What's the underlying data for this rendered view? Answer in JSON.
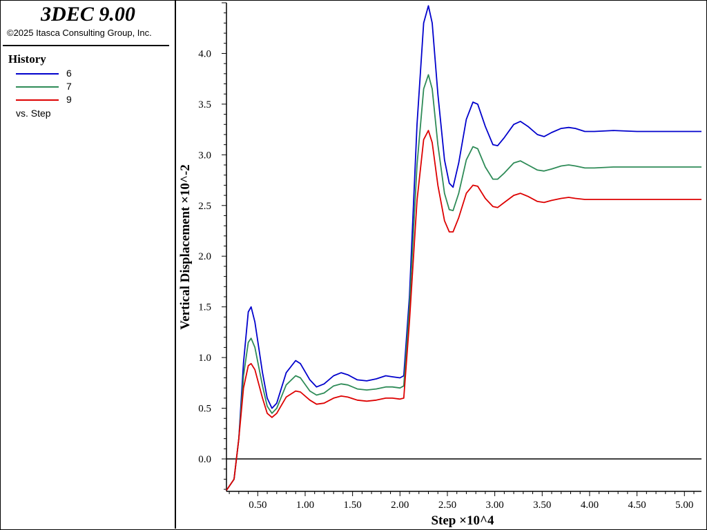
{
  "app": {
    "title": "3DEC 9.00",
    "copyright": "©2025 Itasca Consulting Group, Inc."
  },
  "legend": {
    "heading": "History",
    "entries": [
      {
        "label": "6",
        "color": "#0000cc"
      },
      {
        "label": "7",
        "color": "#2e8b57"
      },
      {
        "label": "9",
        "color": "#dd0000"
      }
    ],
    "footer": "vs. Step"
  },
  "chart_data": {
    "type": "line",
    "xlabel": "Step ×10^4",
    "ylabel": "Vertical Displacement ×10^-2",
    "xlim": [
      0.17,
      5.18
    ],
    "ylim": [
      -0.32,
      4.5
    ],
    "x_ticks": [
      "0.50",
      "1.00",
      "1.50",
      "2.00",
      "2.50",
      "3.00",
      "3.50",
      "4.00",
      "4.50",
      "5.00"
    ],
    "y_ticks": [
      "0.0",
      "0.5",
      "1.0",
      "1.5",
      "2.0",
      "2.5",
      "3.0",
      "3.5",
      "4.0"
    ],
    "zero_line": true,
    "grid": false,
    "series": [
      {
        "name": "6",
        "color": "#0000cc",
        "points": [
          [
            0.17,
            -0.31
          ],
          [
            0.25,
            -0.2
          ],
          [
            0.3,
            0.2
          ],
          [
            0.35,
            0.95
          ],
          [
            0.4,
            1.45
          ],
          [
            0.43,
            1.5
          ],
          [
            0.47,
            1.35
          ],
          [
            0.55,
            0.85
          ],
          [
            0.6,
            0.6
          ],
          [
            0.65,
            0.5
          ],
          [
            0.7,
            0.55
          ],
          [
            0.8,
            0.85
          ],
          [
            0.9,
            0.97
          ],
          [
            0.95,
            0.94
          ],
          [
            1.05,
            0.78
          ],
          [
            1.12,
            0.71
          ],
          [
            1.2,
            0.74
          ],
          [
            1.3,
            0.82
          ],
          [
            1.38,
            0.85
          ],
          [
            1.45,
            0.83
          ],
          [
            1.55,
            0.78
          ],
          [
            1.65,
            0.77
          ],
          [
            1.75,
            0.79
          ],
          [
            1.85,
            0.82
          ],
          [
            1.92,
            0.81
          ],
          [
            2.0,
            0.8
          ],
          [
            2.04,
            0.82
          ],
          [
            2.1,
            1.6
          ],
          [
            2.18,
            3.3
          ],
          [
            2.25,
            4.3
          ],
          [
            2.3,
            4.47
          ],
          [
            2.34,
            4.3
          ],
          [
            2.4,
            3.6
          ],
          [
            2.47,
            2.95
          ],
          [
            2.52,
            2.72
          ],
          [
            2.56,
            2.68
          ],
          [
            2.62,
            2.92
          ],
          [
            2.7,
            3.35
          ],
          [
            2.77,
            3.52
          ],
          [
            2.82,
            3.5
          ],
          [
            2.9,
            3.28
          ],
          [
            2.98,
            3.1
          ],
          [
            3.03,
            3.09
          ],
          [
            3.1,
            3.17
          ],
          [
            3.2,
            3.3
          ],
          [
            3.27,
            3.33
          ],
          [
            3.35,
            3.28
          ],
          [
            3.45,
            3.2
          ],
          [
            3.52,
            3.18
          ],
          [
            3.6,
            3.22
          ],
          [
            3.7,
            3.26
          ],
          [
            3.78,
            3.27
          ],
          [
            3.85,
            3.26
          ],
          [
            3.95,
            3.23
          ],
          [
            4.05,
            3.23
          ],
          [
            4.25,
            3.24
          ],
          [
            4.5,
            3.23
          ],
          [
            5.18,
            3.23
          ]
        ]
      },
      {
        "name": "7",
        "color": "#2e8b57",
        "points": [
          [
            0.17,
            -0.31
          ],
          [
            0.25,
            -0.2
          ],
          [
            0.3,
            0.2
          ],
          [
            0.35,
            0.82
          ],
          [
            0.4,
            1.15
          ],
          [
            0.43,
            1.19
          ],
          [
            0.47,
            1.1
          ],
          [
            0.55,
            0.72
          ],
          [
            0.6,
            0.52
          ],
          [
            0.65,
            0.45
          ],
          [
            0.7,
            0.5
          ],
          [
            0.8,
            0.73
          ],
          [
            0.9,
            0.82
          ],
          [
            0.95,
            0.8
          ],
          [
            1.05,
            0.67
          ],
          [
            1.12,
            0.63
          ],
          [
            1.2,
            0.65
          ],
          [
            1.3,
            0.72
          ],
          [
            1.38,
            0.74
          ],
          [
            1.45,
            0.73
          ],
          [
            1.55,
            0.69
          ],
          [
            1.65,
            0.68
          ],
          [
            1.75,
            0.69
          ],
          [
            1.85,
            0.71
          ],
          [
            1.92,
            0.71
          ],
          [
            2.0,
            0.7
          ],
          [
            2.04,
            0.72
          ],
          [
            2.1,
            1.5
          ],
          [
            2.18,
            2.9
          ],
          [
            2.25,
            3.65
          ],
          [
            2.3,
            3.79
          ],
          [
            2.34,
            3.65
          ],
          [
            2.4,
            3.1
          ],
          [
            2.47,
            2.62
          ],
          [
            2.52,
            2.46
          ],
          [
            2.56,
            2.45
          ],
          [
            2.62,
            2.62
          ],
          [
            2.7,
            2.95
          ],
          [
            2.77,
            3.08
          ],
          [
            2.82,
            3.06
          ],
          [
            2.9,
            2.88
          ],
          [
            2.98,
            2.76
          ],
          [
            3.03,
            2.76
          ],
          [
            3.1,
            2.82
          ],
          [
            3.2,
            2.92
          ],
          [
            3.27,
            2.94
          ],
          [
            3.35,
            2.9
          ],
          [
            3.45,
            2.85
          ],
          [
            3.52,
            2.84
          ],
          [
            3.6,
            2.86
          ],
          [
            3.7,
            2.89
          ],
          [
            3.78,
            2.9
          ],
          [
            3.85,
            2.89
          ],
          [
            3.95,
            2.87
          ],
          [
            4.05,
            2.87
          ],
          [
            4.25,
            2.88
          ],
          [
            4.5,
            2.88
          ],
          [
            5.18,
            2.88
          ]
        ]
      },
      {
        "name": "9",
        "color": "#dd0000",
        "points": [
          [
            0.17,
            -0.31
          ],
          [
            0.25,
            -0.2
          ],
          [
            0.3,
            0.2
          ],
          [
            0.35,
            0.7
          ],
          [
            0.4,
            0.92
          ],
          [
            0.43,
            0.94
          ],
          [
            0.47,
            0.88
          ],
          [
            0.55,
            0.6
          ],
          [
            0.6,
            0.45
          ],
          [
            0.65,
            0.41
          ],
          [
            0.7,
            0.45
          ],
          [
            0.8,
            0.61
          ],
          [
            0.9,
            0.67
          ],
          [
            0.95,
            0.66
          ],
          [
            1.05,
            0.58
          ],
          [
            1.12,
            0.54
          ],
          [
            1.2,
            0.55
          ],
          [
            1.3,
            0.6
          ],
          [
            1.38,
            0.62
          ],
          [
            1.45,
            0.61
          ],
          [
            1.55,
            0.58
          ],
          [
            1.65,
            0.57
          ],
          [
            1.75,
            0.58
          ],
          [
            1.85,
            0.6
          ],
          [
            1.92,
            0.6
          ],
          [
            2.0,
            0.59
          ],
          [
            2.04,
            0.6
          ],
          [
            2.1,
            1.35
          ],
          [
            2.18,
            2.55
          ],
          [
            2.25,
            3.15
          ],
          [
            2.3,
            3.24
          ],
          [
            2.34,
            3.12
          ],
          [
            2.4,
            2.7
          ],
          [
            2.47,
            2.35
          ],
          [
            2.52,
            2.24
          ],
          [
            2.56,
            2.24
          ],
          [
            2.62,
            2.38
          ],
          [
            2.7,
            2.62
          ],
          [
            2.77,
            2.7
          ],
          [
            2.82,
            2.69
          ],
          [
            2.9,
            2.57
          ],
          [
            2.98,
            2.49
          ],
          [
            3.03,
            2.48
          ],
          [
            3.1,
            2.53
          ],
          [
            3.2,
            2.6
          ],
          [
            3.27,
            2.62
          ],
          [
            3.35,
            2.59
          ],
          [
            3.45,
            2.54
          ],
          [
            3.52,
            2.53
          ],
          [
            3.6,
            2.55
          ],
          [
            3.7,
            2.57
          ],
          [
            3.78,
            2.58
          ],
          [
            3.85,
            2.57
          ],
          [
            3.95,
            2.56
          ],
          [
            4.05,
            2.56
          ],
          [
            4.25,
            2.56
          ],
          [
            4.5,
            2.56
          ],
          [
            5.18,
            2.56
          ]
        ]
      }
    ]
  }
}
